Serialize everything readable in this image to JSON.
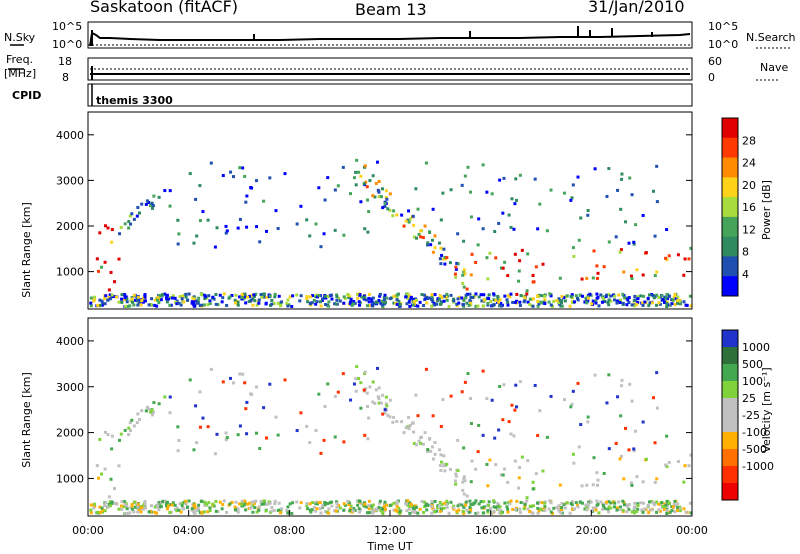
{
  "header": {
    "station": "Saskatoon (fitACF)",
    "beam": "Beam 13",
    "date": "31/Jan/2010"
  },
  "top_panels": {
    "nsky_label": "N.Sky",
    "nsky_ticks": [
      "10^5",
      "10^0"
    ],
    "nsearch_label": "N.Search",
    "nsearch_ticks": [
      "10^5",
      "10^0"
    ],
    "freq_label_1": "Freq.",
    "freq_label_2": "[MHz]",
    "freq_ticks": [
      "18",
      "8"
    ],
    "nave_label": "Nave",
    "nave_ticks": [
      "60",
      "0"
    ],
    "cpid_label": "CPID",
    "cpid_value": "themis 3300"
  },
  "colors": {
    "power_scale": [
      "#0000ff",
      "#1f4fb0",
      "#2f8a5f",
      "#45a45a",
      "#a6dc3c",
      "#ffd21a",
      "#ff8c00",
      "#ff3a00",
      "#e00000"
    ],
    "velocity_scale": [
      "#2233cc",
      "#2f6f3a",
      "#44a850",
      "#7fd23a",
      "#c0c0c0",
      "#c0c0c0",
      "#ffb000",
      "#ff7000",
      "#ff3000",
      "#ee0000"
    ]
  },
  "chart_data": [
    {
      "type": "heatmap",
      "title": "Power",
      "xlabel": "",
      "ylabel": "Slant Range [km]",
      "xlim": [
        "00:00",
        "24:00"
      ],
      "ylim": [
        180,
        4500
      ],
      "y_ticks": [
        "1000",
        "2000",
        "3000",
        "4000"
      ],
      "colorbar": {
        "label": "Power [dB]",
        "range": [
          0,
          32
        ],
        "ticks": [
          "4",
          "8",
          "12",
          "16",
          "20",
          "24",
          "28"
        ]
      },
      "features": [
        {
          "time_start": 0.2,
          "time_end": 1.2,
          "range_start": 400,
          "range_end": 2200,
          "level": "high"
        },
        {
          "time_start": 1.0,
          "time_end": 3.2,
          "range_start": 1500,
          "range_end": 3000,
          "level": "low"
        },
        {
          "time_start": 10.5,
          "time_end": 15.0,
          "range_start": 1000,
          "range_end": 3500,
          "level": "medium"
        },
        {
          "time_start": 14.5,
          "time_end": 24.0,
          "range_start": 800,
          "range_end": 1500,
          "level": "high"
        },
        {
          "time_start": 15.0,
          "time_end": 18.0,
          "range_start": 300,
          "range_end": 900,
          "level": "high"
        }
      ]
    },
    {
      "type": "heatmap",
      "title": "Velocity",
      "xlabel": "Time UT",
      "ylabel": "Slant Range [km]",
      "xlim": [
        "00:00",
        "24:00"
      ],
      "ylim": [
        180,
        4500
      ],
      "x_ticks": [
        "00:00",
        "04:00",
        "08:00",
        "12:00",
        "16:00",
        "20:00",
        "00:00"
      ],
      "y_ticks": [
        "1000",
        "2000",
        "3000",
        "4000"
      ],
      "colorbar": {
        "label": "Velocity [m s⁻¹]",
        "ticks": [
          "1000",
          "500",
          "100",
          "25",
          "-25",
          "-100",
          "-500",
          "-1000"
        ]
      }
    }
  ]
}
